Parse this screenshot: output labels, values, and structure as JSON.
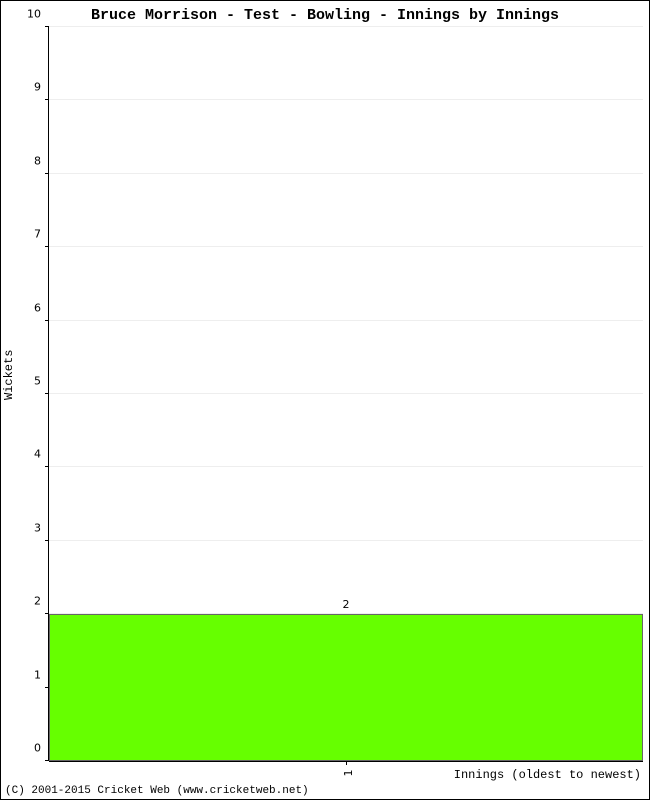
{
  "chart": {
    "type": "bar",
    "title": "Bruce Morrison - Test - Bowling - Innings by Innings",
    "title_fontsize": 15,
    "title_fontweight": "bold",
    "ylabel": "Wickets",
    "xlabel": "Innings (oldest to newest)",
    "label_fontsize": 12,
    "tick_fontsize": 11,
    "background_color": "#ffffff",
    "border_color": "#000000",
    "grid_color": "#eeeeee",
    "axis_color": "#000000",
    "ylim": [
      0,
      10
    ],
    "yticks": [
      0,
      1,
      2,
      3,
      4,
      5,
      6,
      7,
      8,
      9,
      10
    ],
    "categories": [
      "1"
    ],
    "values": [
      2
    ],
    "bar_color": "#66ff00",
    "bar_border_color": "#666666",
    "bar_width": 1.0,
    "bar_label_color": "#000000"
  },
  "copyright": "(C) 2001-2015 Cricket Web (www.cricketweb.net)"
}
